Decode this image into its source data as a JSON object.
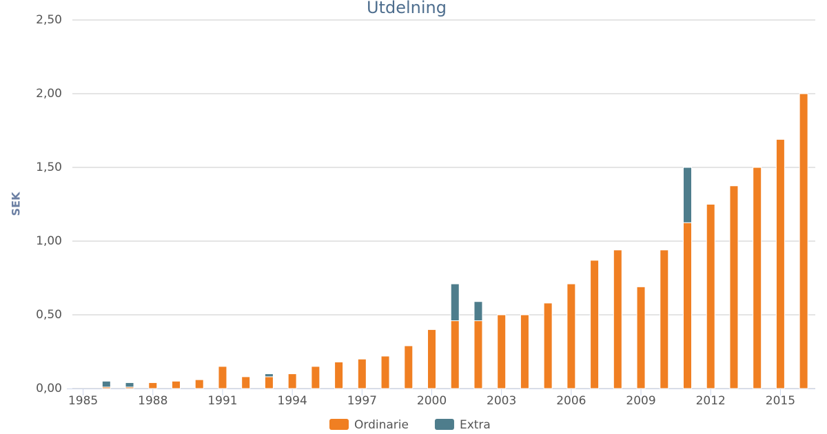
{
  "chart_data": {
    "type": "bar",
    "stacked": true,
    "title": "Utdelning",
    "y_label": "SEK",
    "x": [
      1986,
      1987,
      1988,
      1989,
      1990,
      1991,
      1992,
      1993,
      1994,
      1995,
      1996,
      1997,
      1998,
      1999,
      2000,
      2001,
      2002,
      2003,
      2004,
      2005,
      2006,
      2007,
      2008,
      2009,
      2010,
      2011,
      2012,
      2013,
      2014,
      2015,
      2016
    ],
    "series": [
      {
        "name": "Ordinarie",
        "color": "#f07f22",
        "values": [
          0.01,
          0.01,
          0.04,
          0.05,
          0.06,
          0.15,
          0.08,
          0.08,
          0.1,
          0.15,
          0.18,
          0.2,
          0.22,
          0.29,
          0.4,
          0.46,
          0.46,
          0.5,
          0.5,
          0.58,
          0.71,
          0.87,
          0.94,
          0.69,
          0.94,
          1.125,
          1.25,
          1.375,
          1.5,
          1.69,
          2.0
        ]
      },
      {
        "name": "Extra",
        "color": "#4e7d8c",
        "values": [
          0.04,
          0.03,
          null,
          null,
          null,
          null,
          null,
          0.02,
          null,
          null,
          null,
          null,
          null,
          null,
          null,
          0.25,
          0.13,
          null,
          null,
          null,
          null,
          null,
          null,
          null,
          null,
          0.375,
          null,
          null,
          null,
          null,
          null
        ]
      }
    ],
    "xlim": [
      1984.3,
      2016.5
    ],
    "xticks": [
      1985,
      1988,
      1991,
      1994,
      1997,
      2000,
      2003,
      2006,
      2009,
      2012,
      2015
    ],
    "ylim": [
      0,
      2.5
    ],
    "yticks": [
      {
        "value": 0,
        "label": "0,00"
      },
      {
        "value": 0.5,
        "label": "0,50"
      },
      {
        "value": 1,
        "label": "1,00"
      },
      {
        "value": 1.5,
        "label": "1,50"
      },
      {
        "value": 2,
        "label": "2,00"
      },
      {
        "value": 2.5,
        "label": "2,50"
      }
    ],
    "grid": true,
    "legend": "bottom"
  }
}
